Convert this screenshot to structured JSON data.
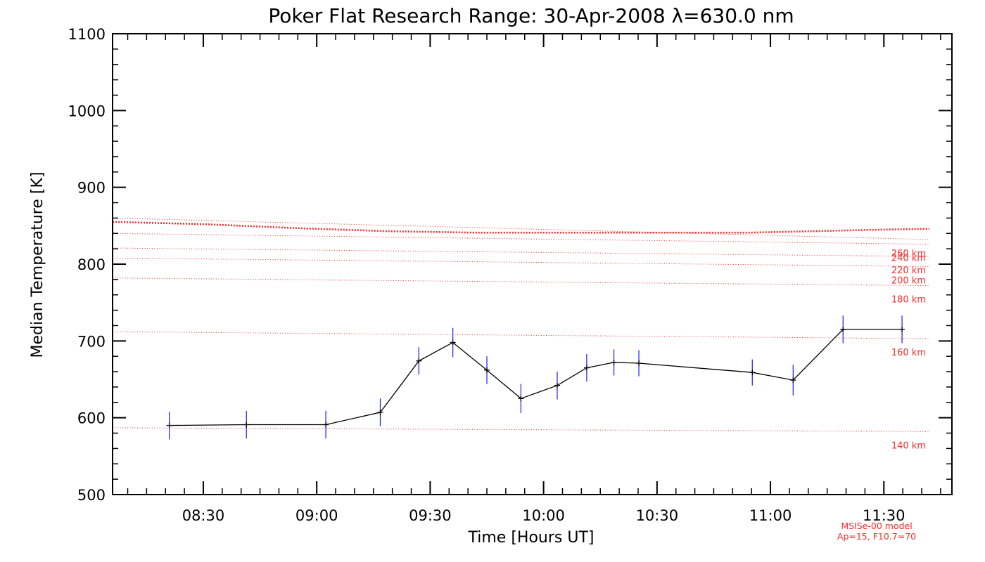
{
  "chart_data": {
    "type": "line",
    "title": "Poker Flat Research Range: 30-Apr-2008 λ=630.0 nm",
    "xlabel": "Time [Hours UT]",
    "ylabel": "Median Temperature [K]",
    "xlim_hours": [
      8.1,
      11.8
    ],
    "ylim": [
      500,
      1100
    ],
    "x_ticks": [
      {
        "value": 8.5,
        "label": "08:30"
      },
      {
        "value": 9.0,
        "label": "09:00"
      },
      {
        "value": 9.5,
        "label": "09:30"
      },
      {
        "value": 10.0,
        "label": "10:00"
      },
      {
        "value": 10.5,
        "label": "10:30"
      },
      {
        "value": 11.0,
        "label": "11:00"
      },
      {
        "value": 11.5,
        "label": "11:30"
      }
    ],
    "y_ticks": [
      500,
      600,
      700,
      800,
      900,
      1000,
      1100
    ],
    "series": [
      {
        "color": "#000000",
        "error_bar_color": "#1a1aff",
        "points": [
          {
            "x": 8.35,
            "y": 590,
            "err": 18
          },
          {
            "x": 8.69,
            "y": 591,
            "err": 18
          },
          {
            "x": 9.04,
            "y": 591,
            "err": 18
          },
          {
            "x": 9.28,
            "y": 607,
            "err": 18
          },
          {
            "x": 9.45,
            "y": 674,
            "err": 18
          },
          {
            "x": 9.6,
            "y": 698,
            "err": 19
          },
          {
            "x": 9.75,
            "y": 662,
            "err": 18
          },
          {
            "x": 9.9,
            "y": 625,
            "err": 19
          },
          {
            "x": 10.06,
            "y": 642,
            "err": 18
          },
          {
            "x": 10.19,
            "y": 665,
            "err": 18
          },
          {
            "x": 10.31,
            "y": 672,
            "err": 17
          },
          {
            "x": 10.42,
            "y": 671,
            "err": 17
          },
          {
            "x": 10.92,
            "y": 659,
            "err": 17
          },
          {
            "x": 11.1,
            "y": 649,
            "err": 20
          },
          {
            "x": 11.32,
            "y": 715,
            "err": 18
          },
          {
            "x": 11.58,
            "y": 715,
            "err": 18
          }
        ]
      }
    ],
    "model_curves": [
      {
        "label": "140 km",
        "color": "#ff2a2a",
        "emphasis": false,
        "points": [
          [
            8.1,
            587
          ],
          [
            11.7,
            582
          ]
        ]
      },
      {
        "label": "160 km",
        "color": "#ff2a2a",
        "emphasis": false,
        "points": [
          [
            8.1,
            712
          ],
          [
            11.7,
            703
          ]
        ]
      },
      {
        "label": "180 km",
        "color": "#ff2a2a",
        "emphasis": false,
        "points": [
          [
            8.1,
            782
          ],
          [
            11.7,
            772
          ]
        ]
      },
      {
        "label": "200 km",
        "color": "#ff2a2a",
        "emphasis": false,
        "points": [
          [
            8.1,
            808
          ],
          [
            11.7,
            797
          ]
        ]
      },
      {
        "label": "220 km",
        "color": "#ff2a2a",
        "emphasis": false,
        "points": [
          [
            8.1,
            821
          ],
          [
            11.7,
            810
          ]
        ]
      },
      {
        "label": "240 km",
        "color": "#ff2a2a",
        "emphasis": false,
        "points": [
          [
            8.1,
            840
          ],
          [
            11.7,
            826
          ]
        ]
      },
      {
        "label": "260 km",
        "color": "#ff2a2a",
        "emphasis": false,
        "points": [
          [
            8.1,
            860
          ],
          [
            11.7,
            832
          ]
        ]
      },
      {
        "label": "",
        "color": "#ff2a2a",
        "emphasis": true,
        "points": [
          [
            8.1,
            855
          ],
          [
            8.5,
            852
          ],
          [
            8.9,
            847
          ],
          [
            9.3,
            843
          ],
          [
            9.7,
            841
          ],
          [
            10.1,
            841
          ],
          [
            10.5,
            841
          ],
          [
            10.9,
            841
          ],
          [
            11.2,
            843
          ],
          [
            11.5,
            845
          ],
          [
            11.7,
            846
          ]
        ]
      }
    ],
    "annotation_lines": [
      "MSISe-00 model",
      "Ap=15, F10.7=70"
    ],
    "annotation_color": "#ff2a2a",
    "grid": false
  }
}
